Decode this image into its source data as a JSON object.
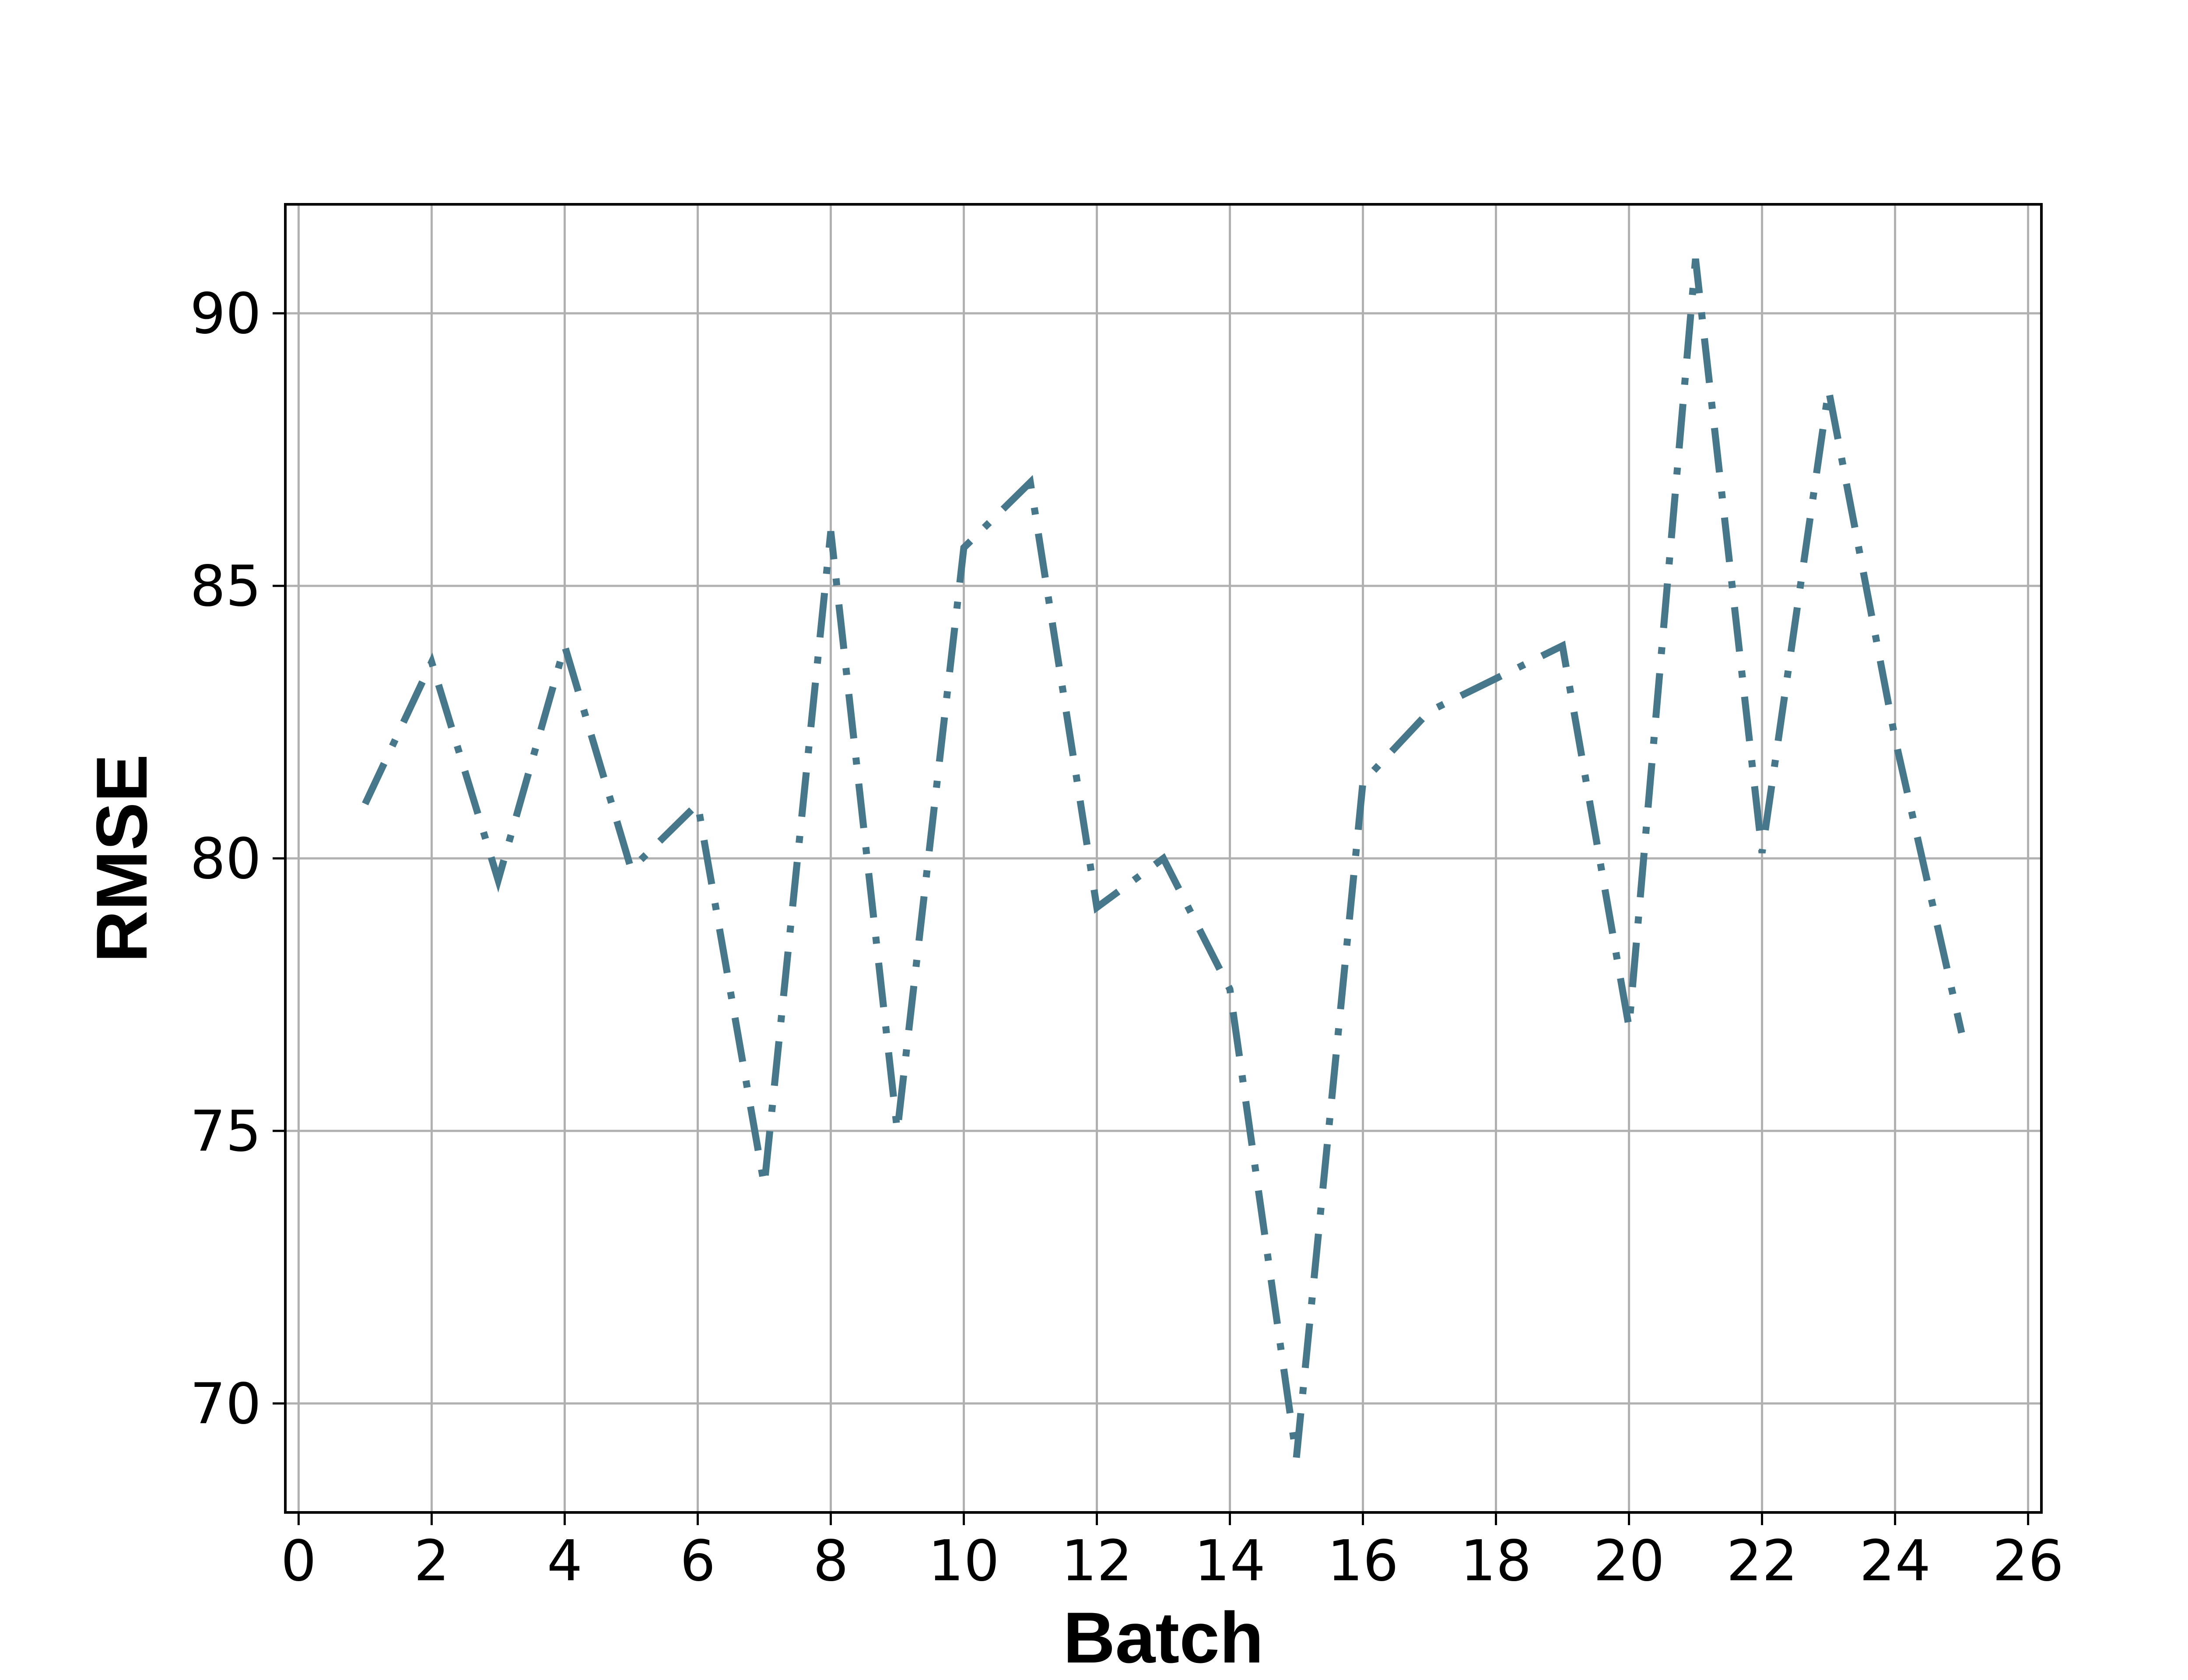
{
  "chart_data": {
    "type": "line",
    "title": "",
    "xlabel": "Batch",
    "ylabel": "RMSE",
    "xlim": [
      -0.2,
      26.2
    ],
    "ylim": [
      68.0,
      92.0
    ],
    "xticks": [
      0,
      2,
      4,
      6,
      8,
      10,
      12,
      14,
      16,
      18,
      20,
      22,
      24,
      26
    ],
    "yticks": [
      70,
      75,
      80,
      85,
      90
    ],
    "xtick_labels": [
      "0",
      "2",
      "4",
      "6",
      "8",
      "10",
      "12",
      "14",
      "16",
      "18",
      "20",
      "22",
      "24",
      "26"
    ],
    "ytick_labels": [
      "70",
      "75",
      "80",
      "85",
      "90"
    ],
    "grid": true,
    "series": [
      {
        "line_style": "dashdot",
        "color": "#46778a",
        "x": [
          1,
          2,
          3,
          4,
          5,
          6,
          7,
          8,
          9,
          10,
          11,
          12,
          13,
          14,
          15,
          16,
          17,
          18,
          19,
          20,
          21,
          22,
          23,
          24,
          25
        ],
        "y": [
          81.0,
          83.6,
          79.6,
          83.9,
          79.8,
          81.0,
          74.0,
          86.0,
          75.0,
          85.7,
          86.9,
          79.1,
          80.0,
          77.6,
          69.0,
          81.4,
          82.7,
          83.3,
          83.9,
          76.9,
          91.0,
          80.1,
          88.6,
          82.2,
          76.8
        ]
      }
    ]
  }
}
